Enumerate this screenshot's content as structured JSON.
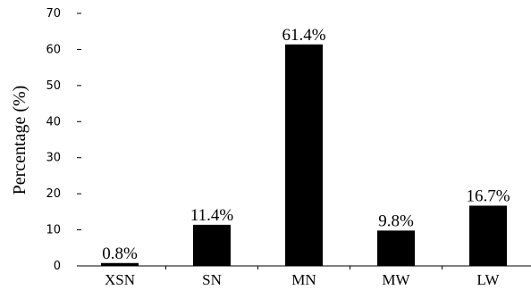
{
  "chart_data": {
    "type": "bar",
    "title": "",
    "xlabel": "",
    "ylabel": "Percentage (%)",
    "ylim": [
      0,
      70
    ],
    "yticks": [
      0,
      10,
      20,
      30,
      40,
      50,
      60,
      70
    ],
    "categories": [
      "XSN",
      "SN",
      "MN",
      "MW",
      "LW"
    ],
    "values": [
      0.8,
      11.4,
      61.4,
      9.8,
      16.7
    ],
    "data_labels": [
      "0.8%",
      "11.4%",
      "61.4%",
      "9.8%",
      "16.7%"
    ],
    "bar_color": "#000000",
    "grid": false,
    "legend": "none"
  }
}
